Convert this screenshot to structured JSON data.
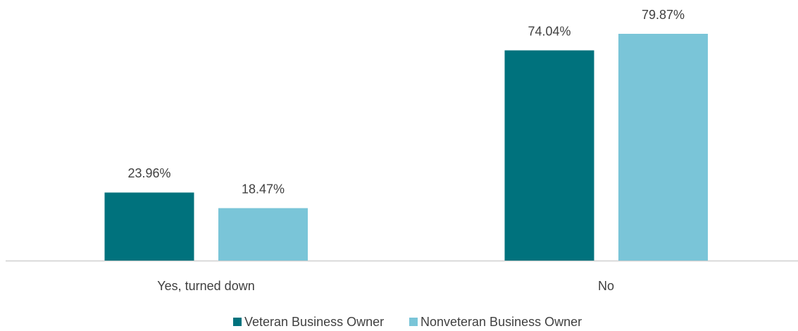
{
  "chart_data": {
    "type": "bar",
    "categories": [
      "Yes, turned down",
      "No"
    ],
    "series": [
      {
        "name": "Veteran Business Owner",
        "color": "#00727d",
        "values": [
          23.96,
          74.04
        ],
        "value_labels": [
          "23.96%",
          "74.04%"
        ]
      },
      {
        "name": "Nonveteran Business Owner",
        "color": "#7ac5d8",
        "values": [
          18.47,
          79.87
        ],
        "value_labels": [
          "18.47%",
          "79.87%"
        ]
      }
    ]
  }
}
